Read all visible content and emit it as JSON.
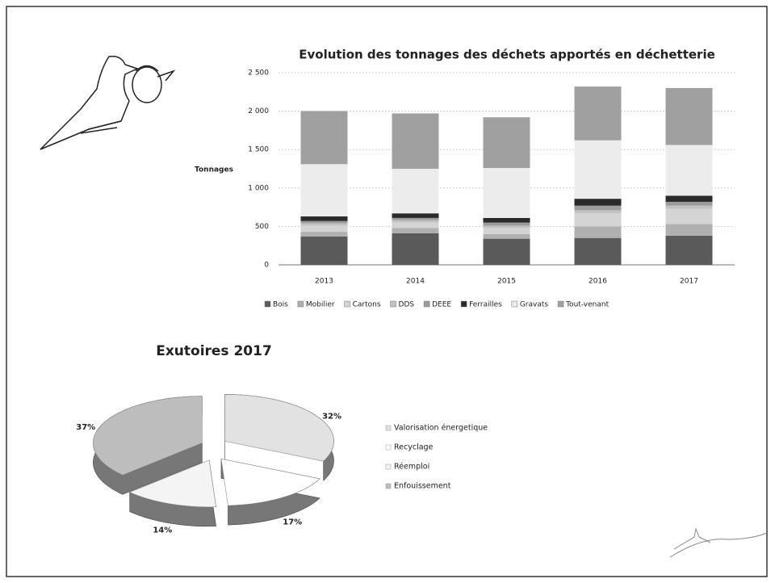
{
  "chart_data": [
    {
      "type": "bar",
      "stacked": true,
      "title": "Evolution des tonnages des déchets apportés en déchetterie",
      "y_label": "Tonnages",
      "categories": [
        "2013",
        "2014",
        "2015",
        "2016",
        "2017"
      ],
      "series": [
        {
          "name": "Bois",
          "color": "#5a5a5a",
          "values": [
            370,
            410,
            340,
            350,
            380
          ]
        },
        {
          "name": "Mobilier",
          "color": "#b0b0b0",
          "values": [
            60,
            70,
            60,
            150,
            150
          ]
        },
        {
          "name": "Cartons",
          "color": "#d4d4d4",
          "values": [
            80,
            70,
            80,
            170,
            200
          ]
        },
        {
          "name": "DDS",
          "color": "#c2c2c2",
          "values": [
            30,
            30,
            30,
            40,
            40
          ]
        },
        {
          "name": "DEEE",
          "color": "#9c9c9c",
          "values": [
            30,
            30,
            40,
            60,
            50
          ]
        },
        {
          "name": "Ferrailles",
          "color": "#2a2a2a",
          "values": [
            60,
            60,
            60,
            90,
            80
          ]
        },
        {
          "name": "Gravats",
          "color": "#ececec",
          "values": [
            680,
            580,
            650,
            760,
            660
          ]
        },
        {
          "name": "Tout-venant",
          "color": "#a0a0a0",
          "values": [
            690,
            720,
            660,
            700,
            740
          ]
        }
      ],
      "ylim": [
        0,
        2500
      ],
      "yticks": [
        0,
        500,
        {
          "value": 1000,
          "label": "1 000"
        },
        {
          "value": 1500,
          "label": "1 500"
        },
        {
          "value": 2000,
          "label": "2 000"
        },
        {
          "value": 2500,
          "label": "2 500"
        }
      ],
      "grid": true,
      "legend": "bottom"
    },
    {
      "type": "pie",
      "title": "Exutoires 2017",
      "categories": [
        "Valorisation énergetique",
        "Recyclage",
        "Réemploi",
        "Enfouissement"
      ],
      "values": [
        32,
        17,
        14,
        37
      ],
      "value_labels": [
        "32%",
        "17%",
        "14%",
        "37%"
      ],
      "colors": [
        "#e2e2e2",
        "#ffffff",
        "#f4f4f4",
        "#bdbdbd"
      ],
      "legend": "right"
    }
  ]
}
